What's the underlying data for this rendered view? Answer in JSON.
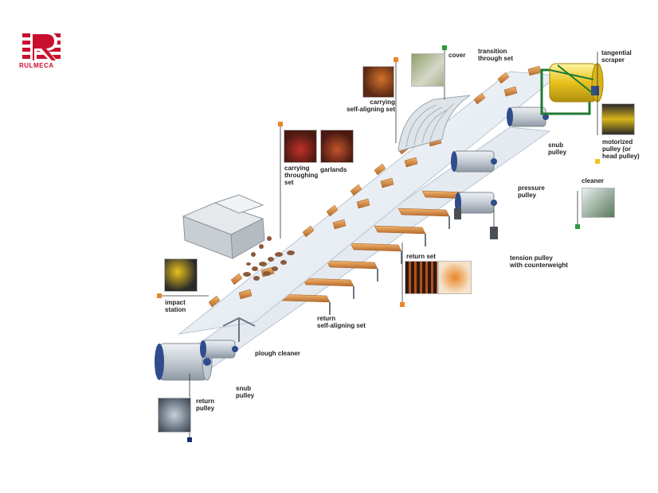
{
  "brand": {
    "name": "RULMECA"
  },
  "colors": {
    "belt": "#e9eef3",
    "belt_edge": "#b9c6d2",
    "idler": "#d88a3a",
    "idler_dark": "#a8602a",
    "pulley": "#c9cfd6",
    "pulley_hub": "#2f4c8c",
    "frame": "#6d7885",
    "cover": "#d8dde2",
    "motor": "#e8c21c",
    "motor_frame": "#1f7a34",
    "orange_marker": "#e8862a",
    "green_marker": "#2a9a3b",
    "yellow_marker": "#f0c419",
    "navy_marker": "#1c2a6b",
    "brand_red": "#c8102e"
  },
  "labels": {
    "cover": "cover",
    "transition_set": "transition\nthrough set",
    "tangential_scraper": "tangential\nscraper",
    "carrying_self_aligning": "carrying\nself-aligning set",
    "snub_pulley_top": "snub\npulley",
    "motorized_pulley": "motorized\npulley (or\nhead pulley)",
    "carrying_throughing": "carrying\nthroughing\nset",
    "garlands": "garlands",
    "pressure_pulley": "pressure\npulley",
    "cleaner": "cleaner",
    "return_set": "return set",
    "tension_pulley": "tension pulley\nwith counterweight",
    "impact_station": "impact\nstation",
    "return_self_aligning": "return\nself-aligning set",
    "plough_cleaner": "plough cleaner",
    "snub_pulley_bottom": "snub\npulley",
    "return_pulley": "return\npulley"
  }
}
